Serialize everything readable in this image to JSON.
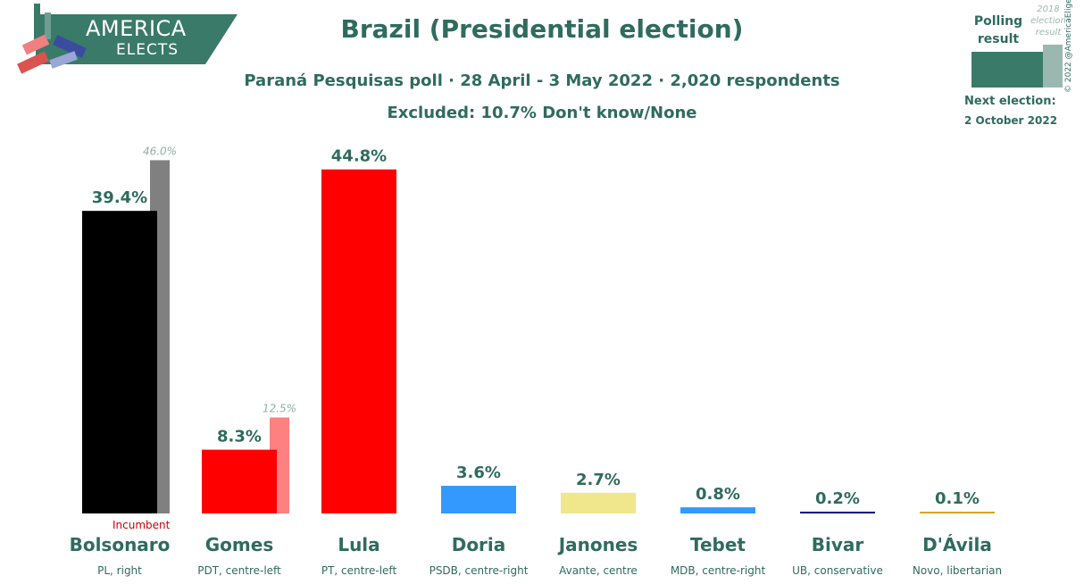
{
  "logo": {
    "line1": "AMERICA",
    "line2": "ELECTS"
  },
  "title": "Brazil (Presidential election)",
  "subtitle": "Paraná Pesquisas poll · 28 April - 3 May 2022 · 2,020 respondents",
  "excluded": "Excluded: 10.7% Don't know/None",
  "legend": {
    "polling_label": "Polling result",
    "previous_label": "2018 election result",
    "polling_color": "#3a7a68",
    "previous_color": "#9bb8b0"
  },
  "copyright": "© 2022 @AmericaElige",
  "next_election": {
    "label": "Next election:",
    "date": "2 October 2022"
  },
  "incumbent_label": "Incumbent",
  "chart_data": {
    "type": "bar",
    "title": "Brazil (Presidential election)",
    "xlabel": "",
    "ylabel": "",
    "ylim": [
      0,
      50
    ],
    "grid": false,
    "categories": [
      "Bolsonaro",
      "Gomes",
      "Lula",
      "Doria",
      "Janones",
      "Tebet",
      "Bivar",
      "D'Ávila"
    ],
    "parties": [
      "PL, right",
      "PDT, centre-left",
      "PT, centre-left",
      "PSDB, centre-right",
      "Avante, centre",
      "MDB, centre-right",
      "UB, conservative",
      "Novo, libertarian"
    ],
    "series": [
      {
        "name": "Polling result",
        "values": [
          39.4,
          8.3,
          44.8,
          3.6,
          2.7,
          0.8,
          0.2,
          0.1
        ],
        "labels": [
          "39.4%",
          "8.3%",
          "44.8%",
          "3.6%",
          "2.7%",
          "0.8%",
          "0.2%",
          "0.1%"
        ]
      },
      {
        "name": "2018 election result",
        "values": [
          46.0,
          12.5,
          null,
          null,
          null,
          null,
          null,
          null
        ],
        "labels": [
          "46.0%",
          "12.5%",
          "",
          "",
          "",
          "",
          "",
          ""
        ]
      }
    ],
    "colors": [
      "#000000",
      "#ff0000",
      "#ff0000",
      "#3399ff",
      "#f0e68c",
      "#3399ff",
      "#000080",
      "#daa520"
    ],
    "previous_colors": [
      "#808080",
      "#ff8080",
      null,
      null,
      null,
      null,
      null,
      null
    ]
  }
}
